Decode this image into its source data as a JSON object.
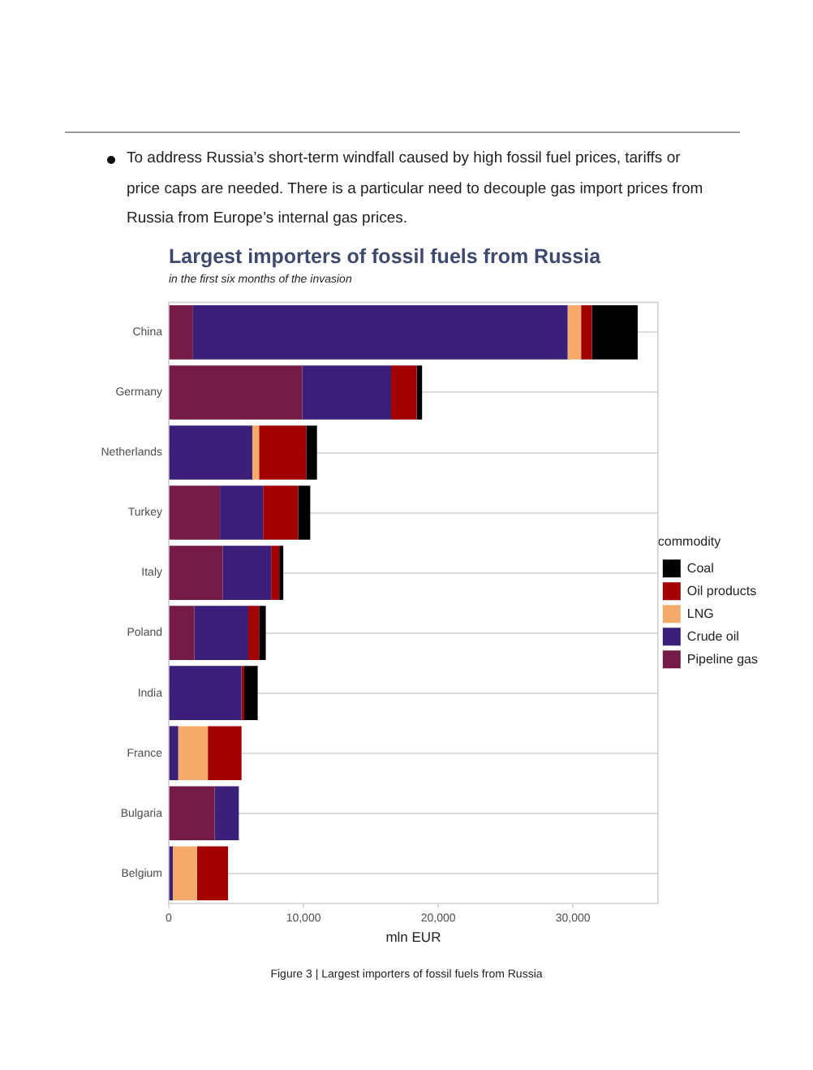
{
  "chart_data": {
    "type": "bar",
    "orientation": "horizontal",
    "stacked": true,
    "title": "Largest importers of fossil fuels from Russia",
    "subtitle": "in the first six months of the invasion",
    "xlabel": "mln EUR",
    "legend_title": "commodity",
    "categories": [
      "China",
      "Germany",
      "Netherlands",
      "Turkey",
      "Italy",
      "Poland",
      "India",
      "France",
      "Bulgaria",
      "Belgium"
    ],
    "series": [
      {
        "name": "Pipeline gas",
        "color": "#741c47",
        "values": [
          1800,
          9900,
          null,
          3800,
          4000,
          1900,
          null,
          null,
          3400,
          null
        ]
      },
      {
        "name": "Crude oil",
        "color": "#3b1f78",
        "values": [
          27800,
          6600,
          6200,
          3200,
          3600,
          4000,
          5400,
          700,
          1800,
          300
        ]
      },
      {
        "name": "LNG",
        "color": "#f4aa6a",
        "values": [
          1000,
          null,
          500,
          null,
          null,
          null,
          null,
          2200,
          null,
          1800
        ]
      },
      {
        "name": "Oil products",
        "color": "#a30000",
        "values": [
          800,
          1900,
          3500,
          2600,
          600,
          800,
          200,
          2500,
          null,
          2300
        ]
      },
      {
        "name": "Coal",
        "color": "#000000",
        "values": [
          3400,
          400,
          800,
          900,
          300,
          500,
          1000,
          null,
          null,
          null
        ]
      }
    ],
    "xlim": [
      0,
      36300
    ],
    "xticks": [
      0,
      {
        "value": 10000,
        "label": "10,000"
      },
      {
        "value": 20000,
        "label": "20,000"
      },
      {
        "value": 30000,
        "label": "30,000"
      }
    ],
    "grid": "y",
    "legend": "right",
    "annotations": [
      "To address Russia’s short-term windfall caused by high fossil fuel prices, tariffs or price caps are needed. There is a particular need to decouple gas import prices from Russia from Europe’s internal gas prices.",
      "Figure 3 | Largest importers of fossil fuels from Russia"
    ]
  }
}
